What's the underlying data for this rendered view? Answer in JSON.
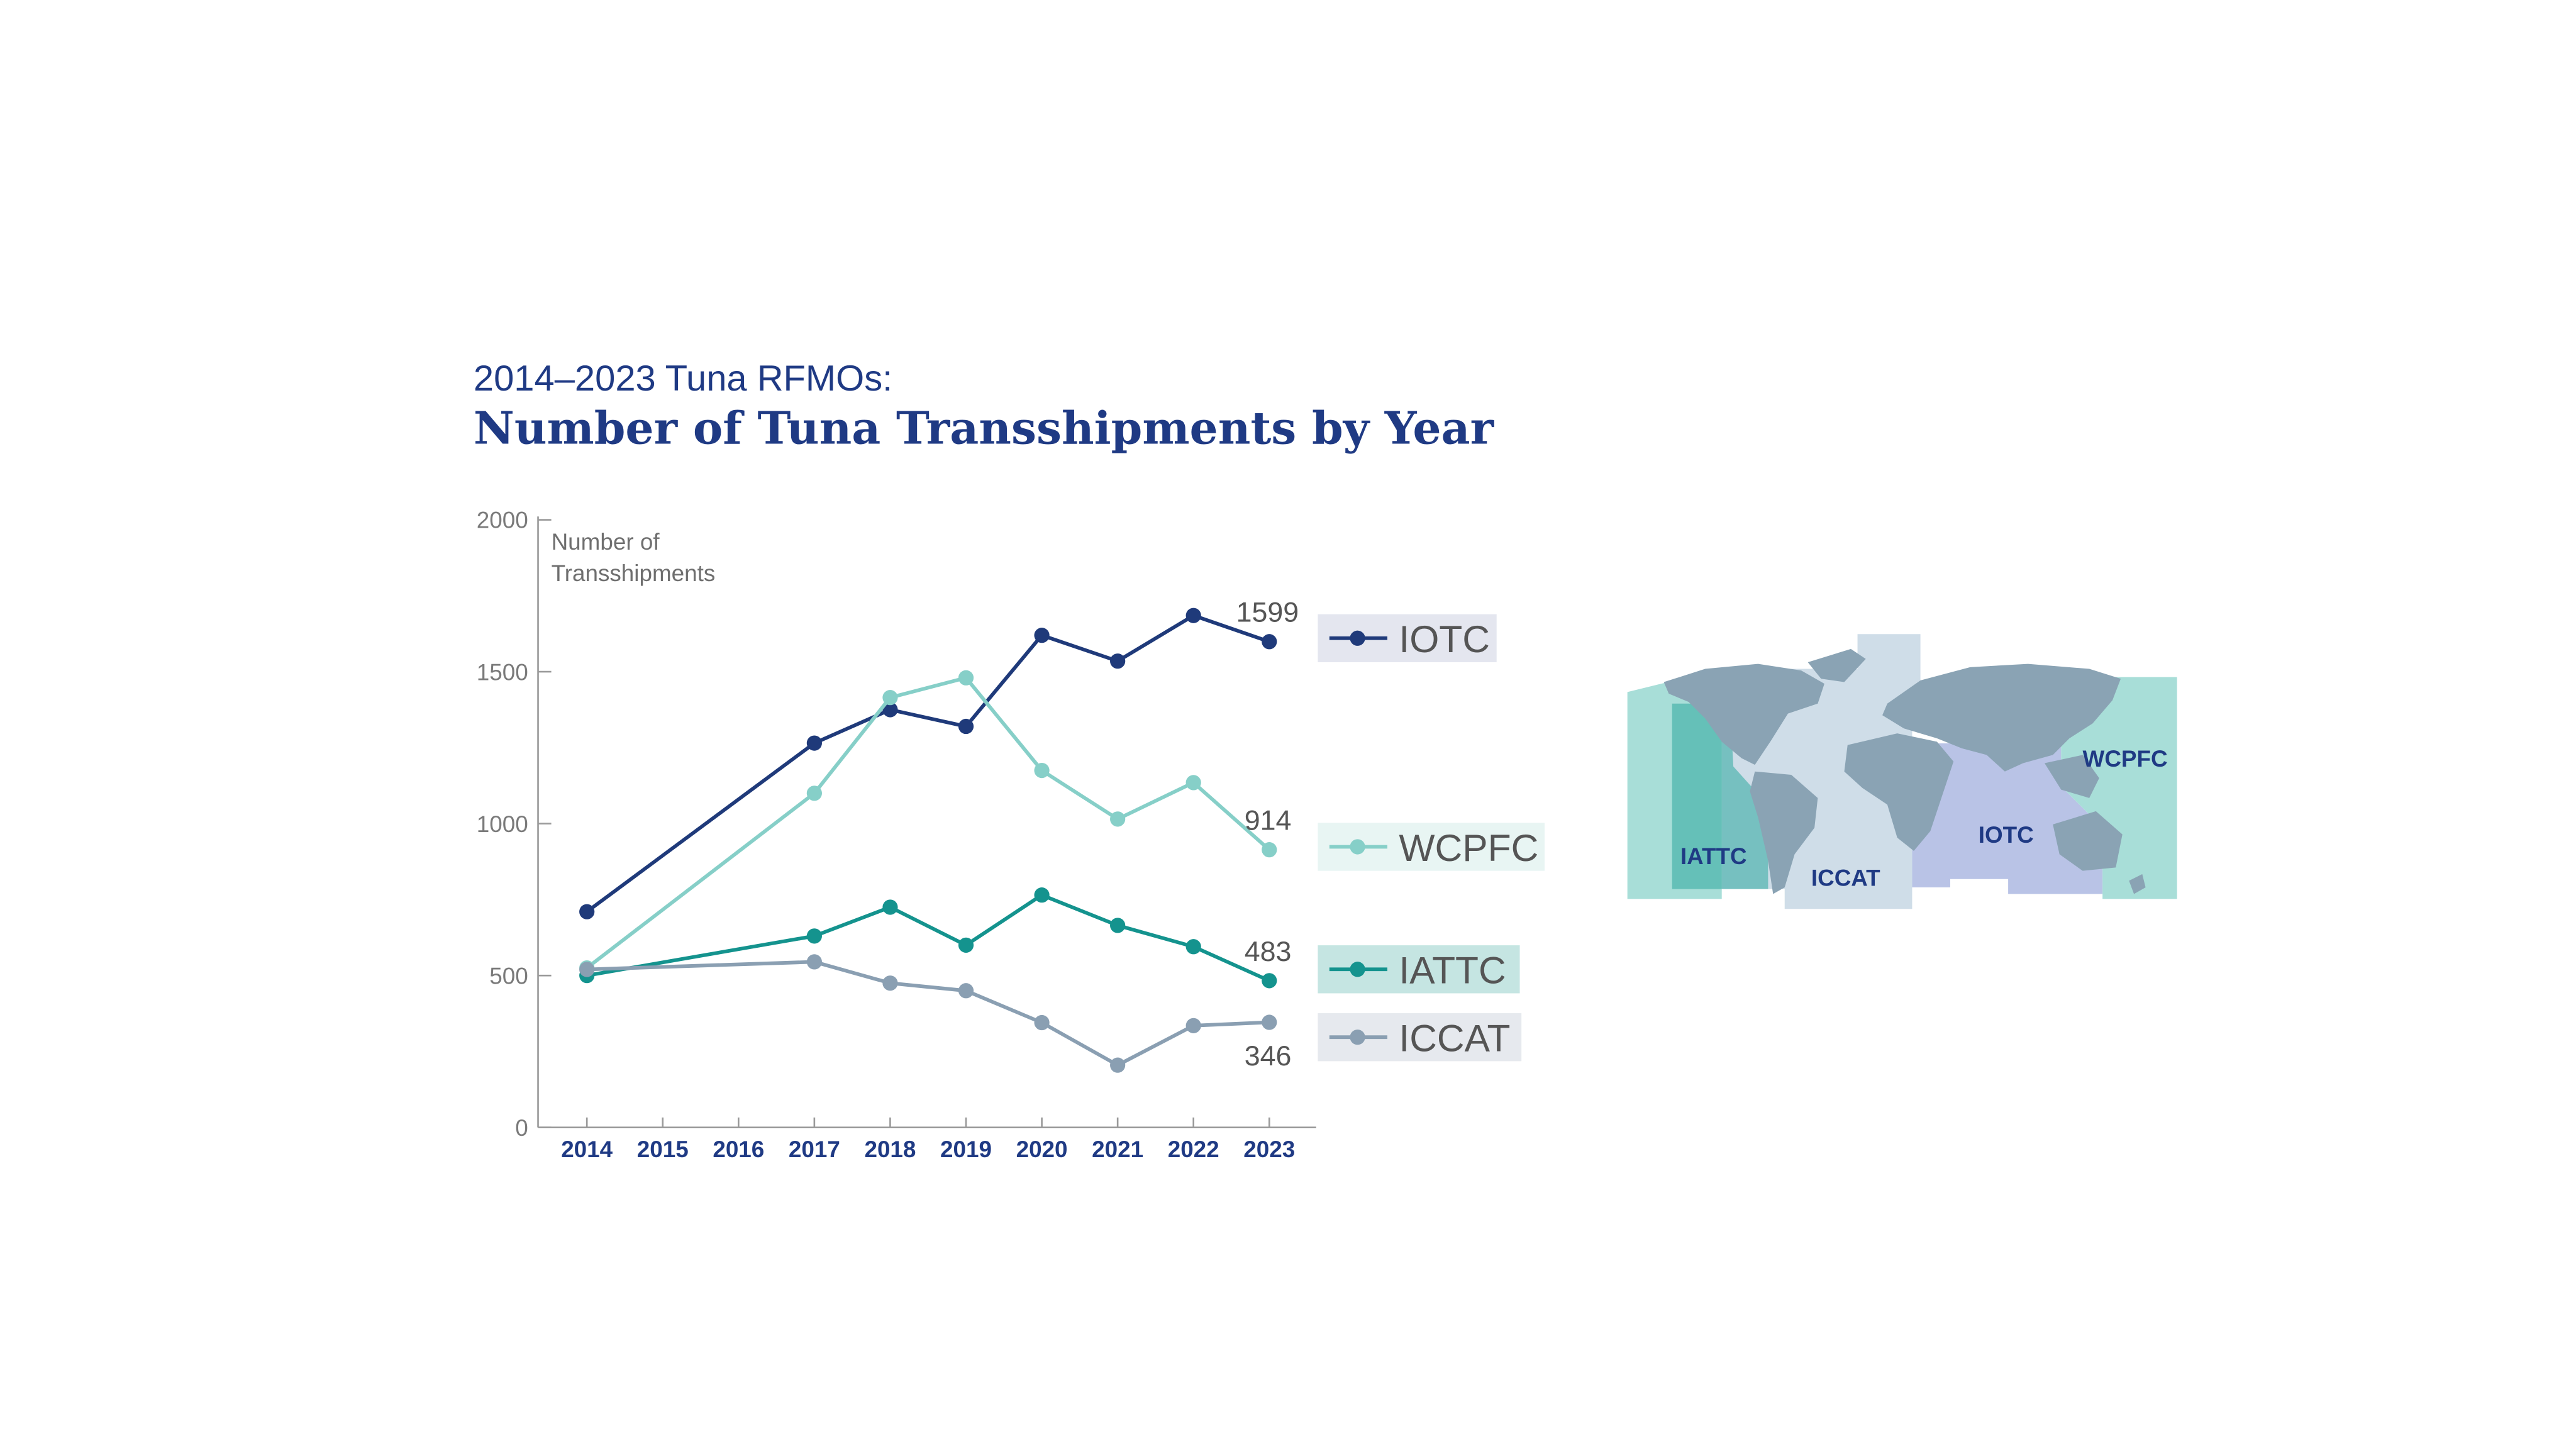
{
  "header": {
    "subtitle": "2014–2023 Tuna RFMOs:",
    "title": "Number of Tuna Transshipments by Year"
  },
  "chart_data": {
    "type": "line",
    "subtitle": "2014–2023 Tuna RFMOs:",
    "title": "Number of Tuna Transshipments by Year",
    "ylabel_line1": "Number of",
    "ylabel_line2": "Transshipments",
    "ylim": [
      0,
      2000
    ],
    "yticks": [
      0,
      500,
      1000,
      1500,
      2000
    ],
    "x_ticks": [
      "2014",
      "2015",
      "2016",
      "2017",
      "2018",
      "2019",
      "2020",
      "2021",
      "2022",
      "2023"
    ],
    "grid": false,
    "legend_position": "right",
    "series": [
      {
        "name": "IOTC",
        "color": "#1f3a7a",
        "legend_bg": "#e4e6ef",
        "x": [
          2014,
          2017,
          2018,
          2019,
          2020,
          2021,
          2022,
          2023
        ],
        "y": [
          710,
          1265,
          1375,
          1320,
          1620,
          1535,
          1685,
          1599
        ],
        "end_label": "1599"
      },
      {
        "name": "WCPFC",
        "color": "#86cfc8",
        "legend_bg": "#e8f5f3",
        "x": [
          2014,
          2017,
          2018,
          2019,
          2020,
          2021,
          2022,
          2023
        ],
        "y": [
          525,
          1100,
          1415,
          1480,
          1175,
          1015,
          1135,
          914
        ],
        "end_label": "914"
      },
      {
        "name": "IATTC",
        "color": "#14938e",
        "legend_bg": "#c5e5e2",
        "x": [
          2014,
          2017,
          2018,
          2019,
          2020,
          2021,
          2022,
          2023
        ],
        "y": [
          500,
          630,
          725,
          600,
          765,
          665,
          595,
          483
        ],
        "end_label": "483"
      },
      {
        "name": "ICCAT",
        "color": "#8a9fb2",
        "legend_bg": "#e6e9ee",
        "x": [
          2014,
          2017,
          2018,
          2019,
          2020,
          2021,
          2022,
          2023
        ],
        "y": [
          520,
          545,
          475,
          450,
          345,
          205,
          335,
          346
        ],
        "end_label": "346"
      }
    ]
  },
  "map": {
    "labels": [
      "IATTC",
      "ICCAT",
      "IOTC",
      "WCPFC"
    ],
    "colors": {
      "iattc": "#2ea89e",
      "iccat": "#cfdde8",
      "iotc": "#b9c3e6",
      "wcpfc": "#a8ded8",
      "land": "#8aa3b4"
    }
  }
}
